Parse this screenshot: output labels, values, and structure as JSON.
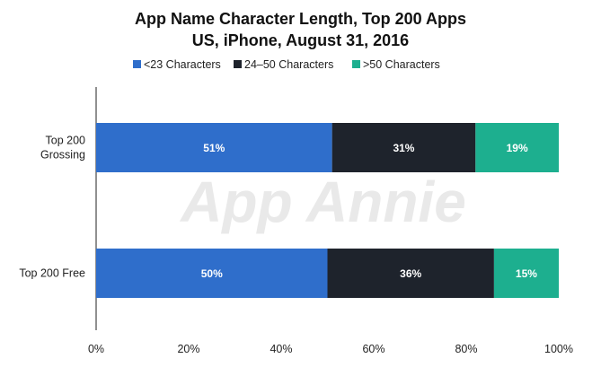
{
  "chart_data": {
    "type": "bar",
    "orientation": "horizontal",
    "stacked": true,
    "title": "App Name Character Length, Top 200 Apps",
    "subtitle": "US, iPhone, August 31, 2016",
    "categories": [
      "Top 200\nGrossing",
      "Top 200 Free"
    ],
    "series": [
      {
        "name": "<23 Characters",
        "color": "#2f6ecb",
        "values": [
          51,
          50
        ],
        "labels": [
          "51%",
          "50%"
        ]
      },
      {
        "name": "24–50 Characters",
        "color": "#1e232c",
        "values": [
          31,
          36
        ],
        "labels": [
          "31%",
          "36%"
        ]
      },
      {
        "name": ">50 Characters",
        "color": "#1daf8f",
        "values": [
          19,
          15
        ],
        "labels": [
          "19%",
          "15%"
        ]
      }
    ],
    "xlim": [
      0,
      100
    ],
    "xticks": [
      0,
      20,
      40,
      60,
      80,
      100
    ],
    "xtick_labels": [
      "0%",
      "20%",
      "40%",
      "60%",
      "80%",
      "100%"
    ],
    "legend_position": "top",
    "grid": false,
    "watermark": "App Annie"
  }
}
